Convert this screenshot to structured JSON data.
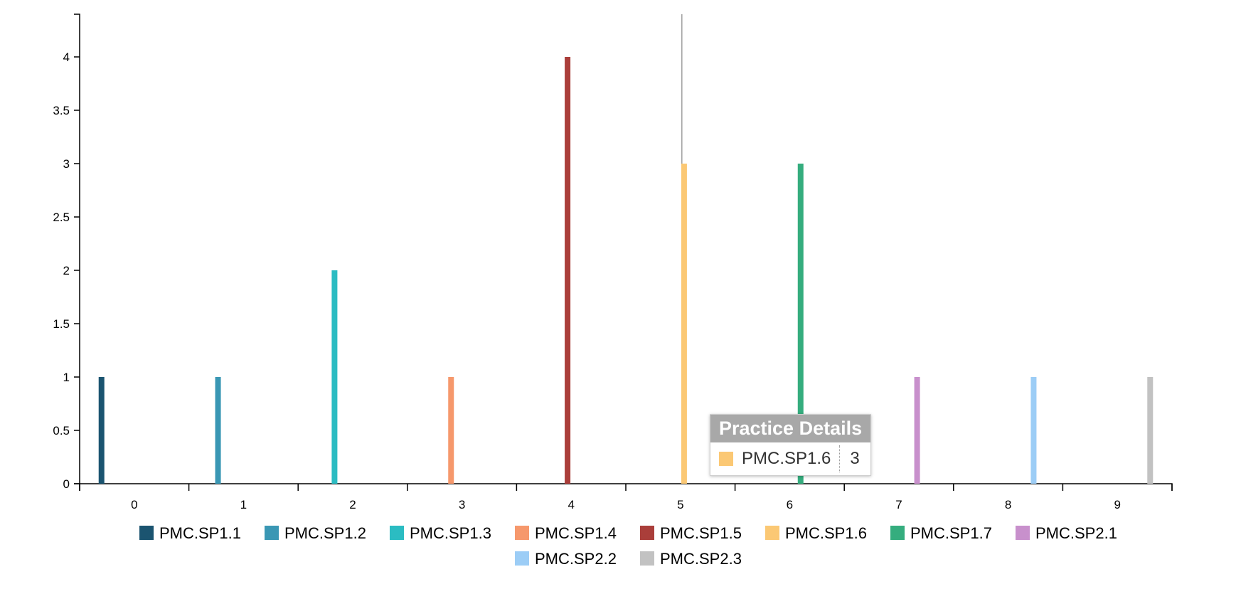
{
  "chart_data": {
    "type": "bar",
    "categories": [
      "0",
      "1",
      "2",
      "3",
      "4",
      "5",
      "6",
      "7",
      "8",
      "9"
    ],
    "series": [
      {
        "name": "PMC.SP1.1",
        "color": "#1b5470",
        "values": [
          1,
          0,
          0,
          0,
          0,
          0,
          0,
          0,
          0,
          0
        ]
      },
      {
        "name": "PMC.SP1.2",
        "color": "#3a97b4",
        "values": [
          0,
          1,
          0,
          0,
          0,
          0,
          0,
          0,
          0,
          0
        ]
      },
      {
        "name": "PMC.SP1.3",
        "color": "#2bbcc2",
        "values": [
          0,
          0,
          2,
          0,
          0,
          0,
          0,
          0,
          0,
          0
        ]
      },
      {
        "name": "PMC.SP1.4",
        "color": "#f6986c",
        "values": [
          0,
          0,
          0,
          1,
          0,
          0,
          0,
          0,
          0,
          0
        ]
      },
      {
        "name": "PMC.SP1.5",
        "color": "#aa3e3a",
        "values": [
          0,
          0,
          0,
          0,
          4,
          0,
          0,
          0,
          0,
          0
        ]
      },
      {
        "name": "PMC.SP1.6",
        "color": "#fbc874",
        "values": [
          0,
          0,
          0,
          0,
          0,
          3,
          0,
          0,
          0,
          0
        ]
      },
      {
        "name": "PMC.SP1.7",
        "color": "#35ad7e",
        "values": [
          0,
          0,
          0,
          0,
          0,
          0,
          3,
          0,
          0,
          0
        ]
      },
      {
        "name": "PMC.SP2.1",
        "color": "#c890cc",
        "values": [
          0,
          0,
          0,
          0,
          0,
          0,
          0,
          1,
          0,
          0
        ]
      },
      {
        "name": "PMC.SP2.2",
        "color": "#9ccdf6",
        "values": [
          0,
          0,
          0,
          0,
          0,
          0,
          0,
          0,
          1,
          0
        ]
      },
      {
        "name": "PMC.SP2.3",
        "color": "#c2c2c2",
        "values": [
          0,
          0,
          0,
          0,
          0,
          0,
          0,
          0,
          0,
          1
        ]
      }
    ],
    "yticks": [
      "0",
      "0.5",
      "1",
      "1.5",
      "2",
      "2.5",
      "3",
      "3.5",
      "4"
    ],
    "ylim": [
      0,
      4.4
    ],
    "grid": false,
    "legend": "bottom",
    "title": "",
    "xlabel": "",
    "ylabel": "",
    "hover_category": "5"
  },
  "tooltip": {
    "title": "Practice Details",
    "name": "PMC.SP1.6",
    "value": "3",
    "color": "#fbc874"
  }
}
